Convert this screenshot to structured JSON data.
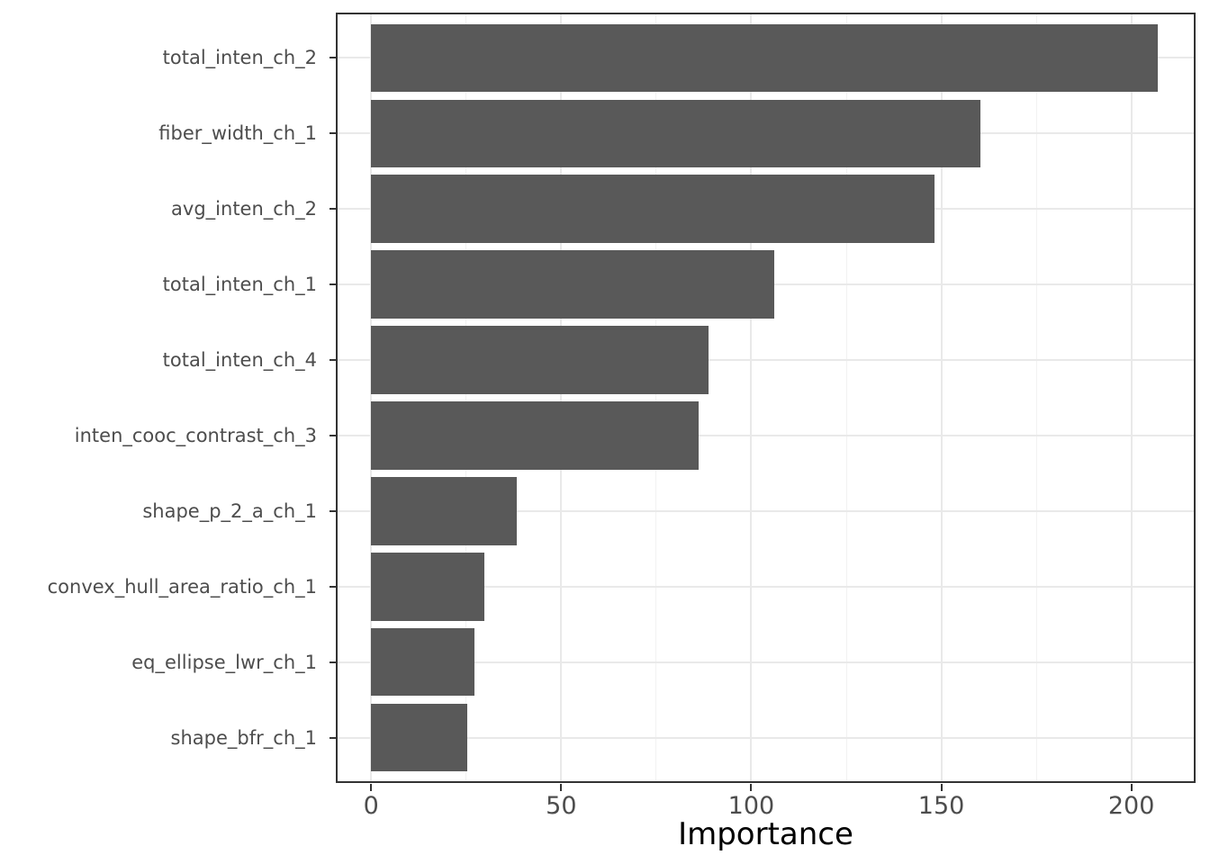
{
  "chart_data": {
    "type": "bar",
    "orientation": "horizontal",
    "title": "",
    "xlabel": "Importance",
    "ylabel": "",
    "categories": [
      "total_inten_ch_2",
      "fiber_width_ch_1",
      "avg_inten_ch_2",
      "total_inten_ch_1",
      "total_inten_ch_4",
      "inten_cooc_contrast_ch_3",
      "shape_p_2_a_ch_1",
      "convex_hull_area_ratio_ch_1",
      "eq_ellipse_lwr_ch_1",
      "shape_bfr_ch_1"
    ],
    "values": [
      207.0,
      160.2,
      148.1,
      106.0,
      88.7,
      86.1,
      38.3,
      29.8,
      27.1,
      25.3
    ],
    "x_ticks": [
      0,
      50,
      100,
      150,
      200
    ],
    "x_tick_labels": [
      "0",
      "50",
      "100",
      "150",
      "200"
    ],
    "x_minor_ticks": [
      25,
      75,
      125,
      175
    ],
    "xlim": [
      -9.3,
      216.9
    ],
    "grid": "major-and-minor-vertical, major-horizontal",
    "legend_position": "none",
    "colors": {
      "bar_fill": "#595959",
      "panel_border": "#333333",
      "grid_major": "#e9e9e9",
      "grid_minor": "#f2f2f2",
      "tick_mark": "#333333",
      "axis_text": "#4d4d4d",
      "axis_title": "#000000",
      "background": "#ffffff"
    }
  }
}
